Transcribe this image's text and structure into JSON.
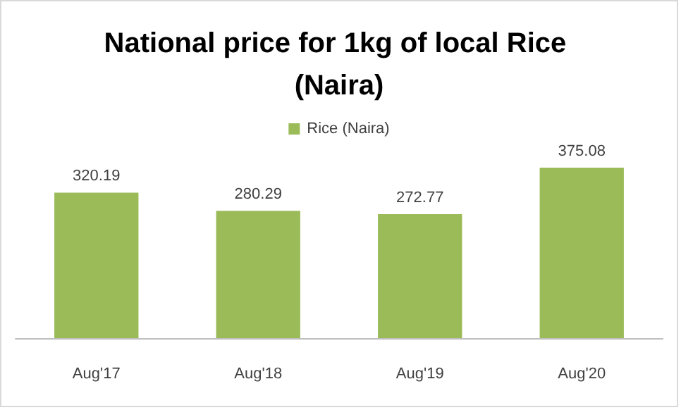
{
  "chart_data": {
    "type": "bar",
    "title": "National price for 1kg of local Rice (Naira)",
    "categories": [
      "Aug'17",
      "Aug'18",
      "Aug'19",
      "Aug'20"
    ],
    "series": [
      {
        "name": "Rice (Naira)",
        "color": "#9bbb59",
        "values": [
          320.19,
          280.29,
          272.77,
          375.08
        ]
      }
    ],
    "data_labels": true,
    "legend": "top"
  }
}
